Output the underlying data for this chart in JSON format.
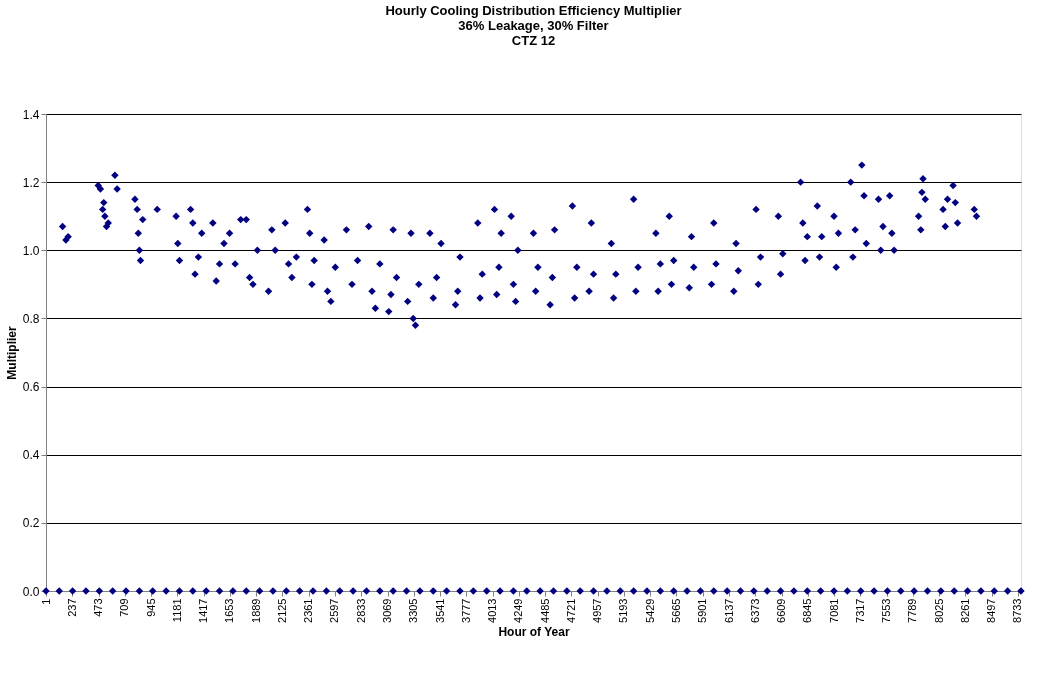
{
  "chart_data": {
    "type": "scatter",
    "title": "Hourly Cooling Distribution Efficiency Multiplier\n36% Leakage, 30% Filter\nCTZ 12",
    "xlabel": "Hour of Year",
    "ylabel": "Multiplier",
    "xlim": [
      1,
      8760
    ],
    "xticks": [
      1,
      237,
      473,
      709,
      945,
      1181,
      1417,
      1653,
      1889,
      2125,
      2361,
      2597,
      2833,
      3069,
      3305,
      3541,
      3777,
      4013,
      4249,
      4485,
      4721,
      4957,
      5193,
      5429,
      5665,
      5901,
      6137,
      6373,
      6609,
      6845,
      7081,
      7317,
      7553,
      7789,
      8025,
      8261,
      8497,
      8733
    ],
    "ylim": [
      0,
      1.4
    ],
    "yticks": [
      {
        "value": 0,
        "label": "0.0"
      },
      {
        "value": 0.2,
        "label": "0.2"
      },
      {
        "value": 0.4,
        "label": "0.4"
      },
      {
        "value": 0.6,
        "label": "0.6"
      },
      {
        "value": 0.8,
        "label": "0.8"
      },
      {
        "value": 1.0,
        "label": "1.0"
      },
      {
        "value": 1.2,
        "label": "1.2"
      },
      {
        "value": 1.4,
        "label": "1.4"
      }
    ],
    "grid": "y",
    "marker": "diamond",
    "series": [
      {
        "color": "#000080",
        "x": [
          1,
          120,
          240,
          360,
          480,
          600,
          720,
          840,
          960,
          1080,
          1200,
          1320,
          1440,
          1560,
          1680,
          1800,
          1920,
          2040,
          2160,
          2280,
          2400,
          2520,
          2640,
          2760,
          2880,
          3000,
          3120,
          3240,
          3360,
          3480,
          3600,
          3720,
          3840,
          3960,
          4080,
          4200,
          4320,
          4440,
          4560,
          4680,
          4800,
          4920,
          5040,
          5160,
          5280,
          5400,
          5520,
          5640,
          5760,
          5880,
          6000,
          6120,
          6240,
          6360,
          6480,
          6600,
          6720,
          6840,
          6960,
          7080,
          7200,
          7320,
          7440,
          7560,
          7680,
          7800,
          7920,
          8040,
          8160,
          8280,
          8400,
          8520,
          8640,
          8760
        ],
        "values": [
          0,
          0,
          0,
          0,
          0,
          0,
          0,
          0,
          0,
          0,
          0,
          0,
          0,
          0,
          0,
          0,
          0,
          0,
          0,
          0,
          0,
          0,
          0,
          0,
          0,
          0,
          0,
          0,
          0,
          0,
          0,
          0,
          0,
          0,
          0,
          0,
          0,
          0,
          0,
          0,
          0,
          0,
          0,
          0,
          0,
          0,
          0,
          0,
          0,
          0,
          0,
          0,
          0,
          0,
          0,
          0,
          0,
          0,
          0,
          0,
          0,
          0,
          0,
          0,
          0,
          0,
          0,
          0,
          0,
          0,
          0,
          0,
          0,
          0
        ]
      },
      {
        "color": "#000080",
        "x": [
          150,
          180,
          200,
          470,
          490,
          510,
          530,
          545,
          560,
          520,
          620,
          640,
          800,
          820,
          830,
          840,
          850,
          870,
          1000,
          1170,
          1185,
          1200,
          1300,
          1320,
          1340,
          1370,
          1400,
          1500,
          1530,
          1560,
          1600,
          1650,
          1700,
          1750,
          1800,
          1830,
          1860,
          1900,
          2000,
          2030,
          2060,
          2150,
          2180,
          2210,
          2250,
          2350,
          2370,
          2390,
          2410,
          2500,
          2530,
          2560,
          2600,
          2700,
          2750,
          2800,
          2900,
          2930,
          2960,
          3000,
          3080,
          3100,
          3120,
          3150,
          3250,
          3280,
          3300,
          3320,
          3350,
          3450,
          3480,
          3510,
          3550,
          3680,
          3700,
          3720,
          3880,
          3900,
          3920,
          4030,
          4050,
          4070,
          4090,
          4180,
          4200,
          4220,
          4240,
          4380,
          4400,
          4420,
          4530,
          4550,
          4570,
          4730,
          4750,
          4770,
          4880,
          4900,
          4920,
          5080,
          5100,
          5120,
          5280,
          5300,
          5320,
          5480,
          5500,
          5520,
          5600,
          5620,
          5640,
          5780,
          5800,
          5820,
          5980,
          6000,
          6020,
          6180,
          6200,
          6220,
          6380,
          6400,
          6420,
          6580,
          6600,
          6620,
          6780,
          6800,
          6820,
          6840,
          6930,
          6950,
          6970,
          7080,
          7100,
          7120,
          7230,
          7250,
          7270,
          7330,
          7350,
          7370,
          7480,
          7500,
          7520,
          7580,
          7600,
          7620,
          7840,
          7860,
          7870,
          7880,
          7900,
          8060,
          8080,
          8100,
          8150,
          8170,
          8190,
          8340,
          8360
        ],
        "values": [
          1.07,
          1.03,
          1.04,
          1.19,
          1.18,
          1.12,
          1.1,
          1.07,
          1.08,
          1.14,
          1.22,
          1.18,
          1.15,
          1.12,
          1.05,
          1.0,
          0.97,
          1.09,
          1.12,
          1.1,
          1.02,
          0.97,
          1.12,
          1.08,
          0.93,
          0.98,
          1.05,
          1.08,
          0.91,
          0.96,
          1.02,
          1.05,
          0.96,
          1.09,
          1.09,
          0.92,
          0.9,
          1.0,
          0.88,
          1.06,
          1.0,
          1.08,
          0.96,
          0.92,
          0.98,
          1.12,
          1.05,
          0.9,
          0.97,
          1.03,
          0.88,
          0.85,
          0.95,
          1.06,
          0.9,
          0.97,
          1.07,
          0.88,
          0.83,
          0.96,
          0.82,
          0.87,
          1.06,
          0.92,
          0.85,
          1.05,
          0.8,
          0.78,
          0.9,
          1.05,
          0.86,
          0.92,
          1.02,
          0.84,
          0.88,
          0.98,
          1.08,
          0.86,
          0.93,
          1.12,
          0.87,
          0.95,
          1.05,
          1.1,
          0.9,
          0.85,
          1.0,
          1.05,
          0.88,
          0.95,
          0.84,
          0.92,
          1.06,
          1.13,
          0.86,
          0.95,
          0.88,
          1.08,
          0.93,
          1.02,
          0.86,
          0.93,
          1.15,
          0.88,
          0.95,
          1.05,
          0.88,
          0.96,
          1.1,
          0.9,
          0.97,
          0.89,
          1.04,
          0.95,
          0.9,
          1.08,
          0.96,
          0.88,
          1.02,
          0.94,
          1.12,
          0.9,
          0.98,
          1.1,
          0.93,
          0.99,
          1.2,
          1.08,
          0.97,
          1.04,
          1.13,
          0.98,
          1.04,
          1.1,
          0.95,
          1.05,
          1.2,
          0.98,
          1.06,
          1.25,
          1.16,
          1.02,
          1.15,
          1.0,
          1.07,
          1.16,
          1.05,
          1.0,
          1.1,
          1.06,
          1.17,
          1.21,
          1.15,
          1.12,
          1.07,
          1.15,
          1.19,
          1.14,
          1.08,
          1.12,
          1.1
        ]
      }
    ]
  }
}
